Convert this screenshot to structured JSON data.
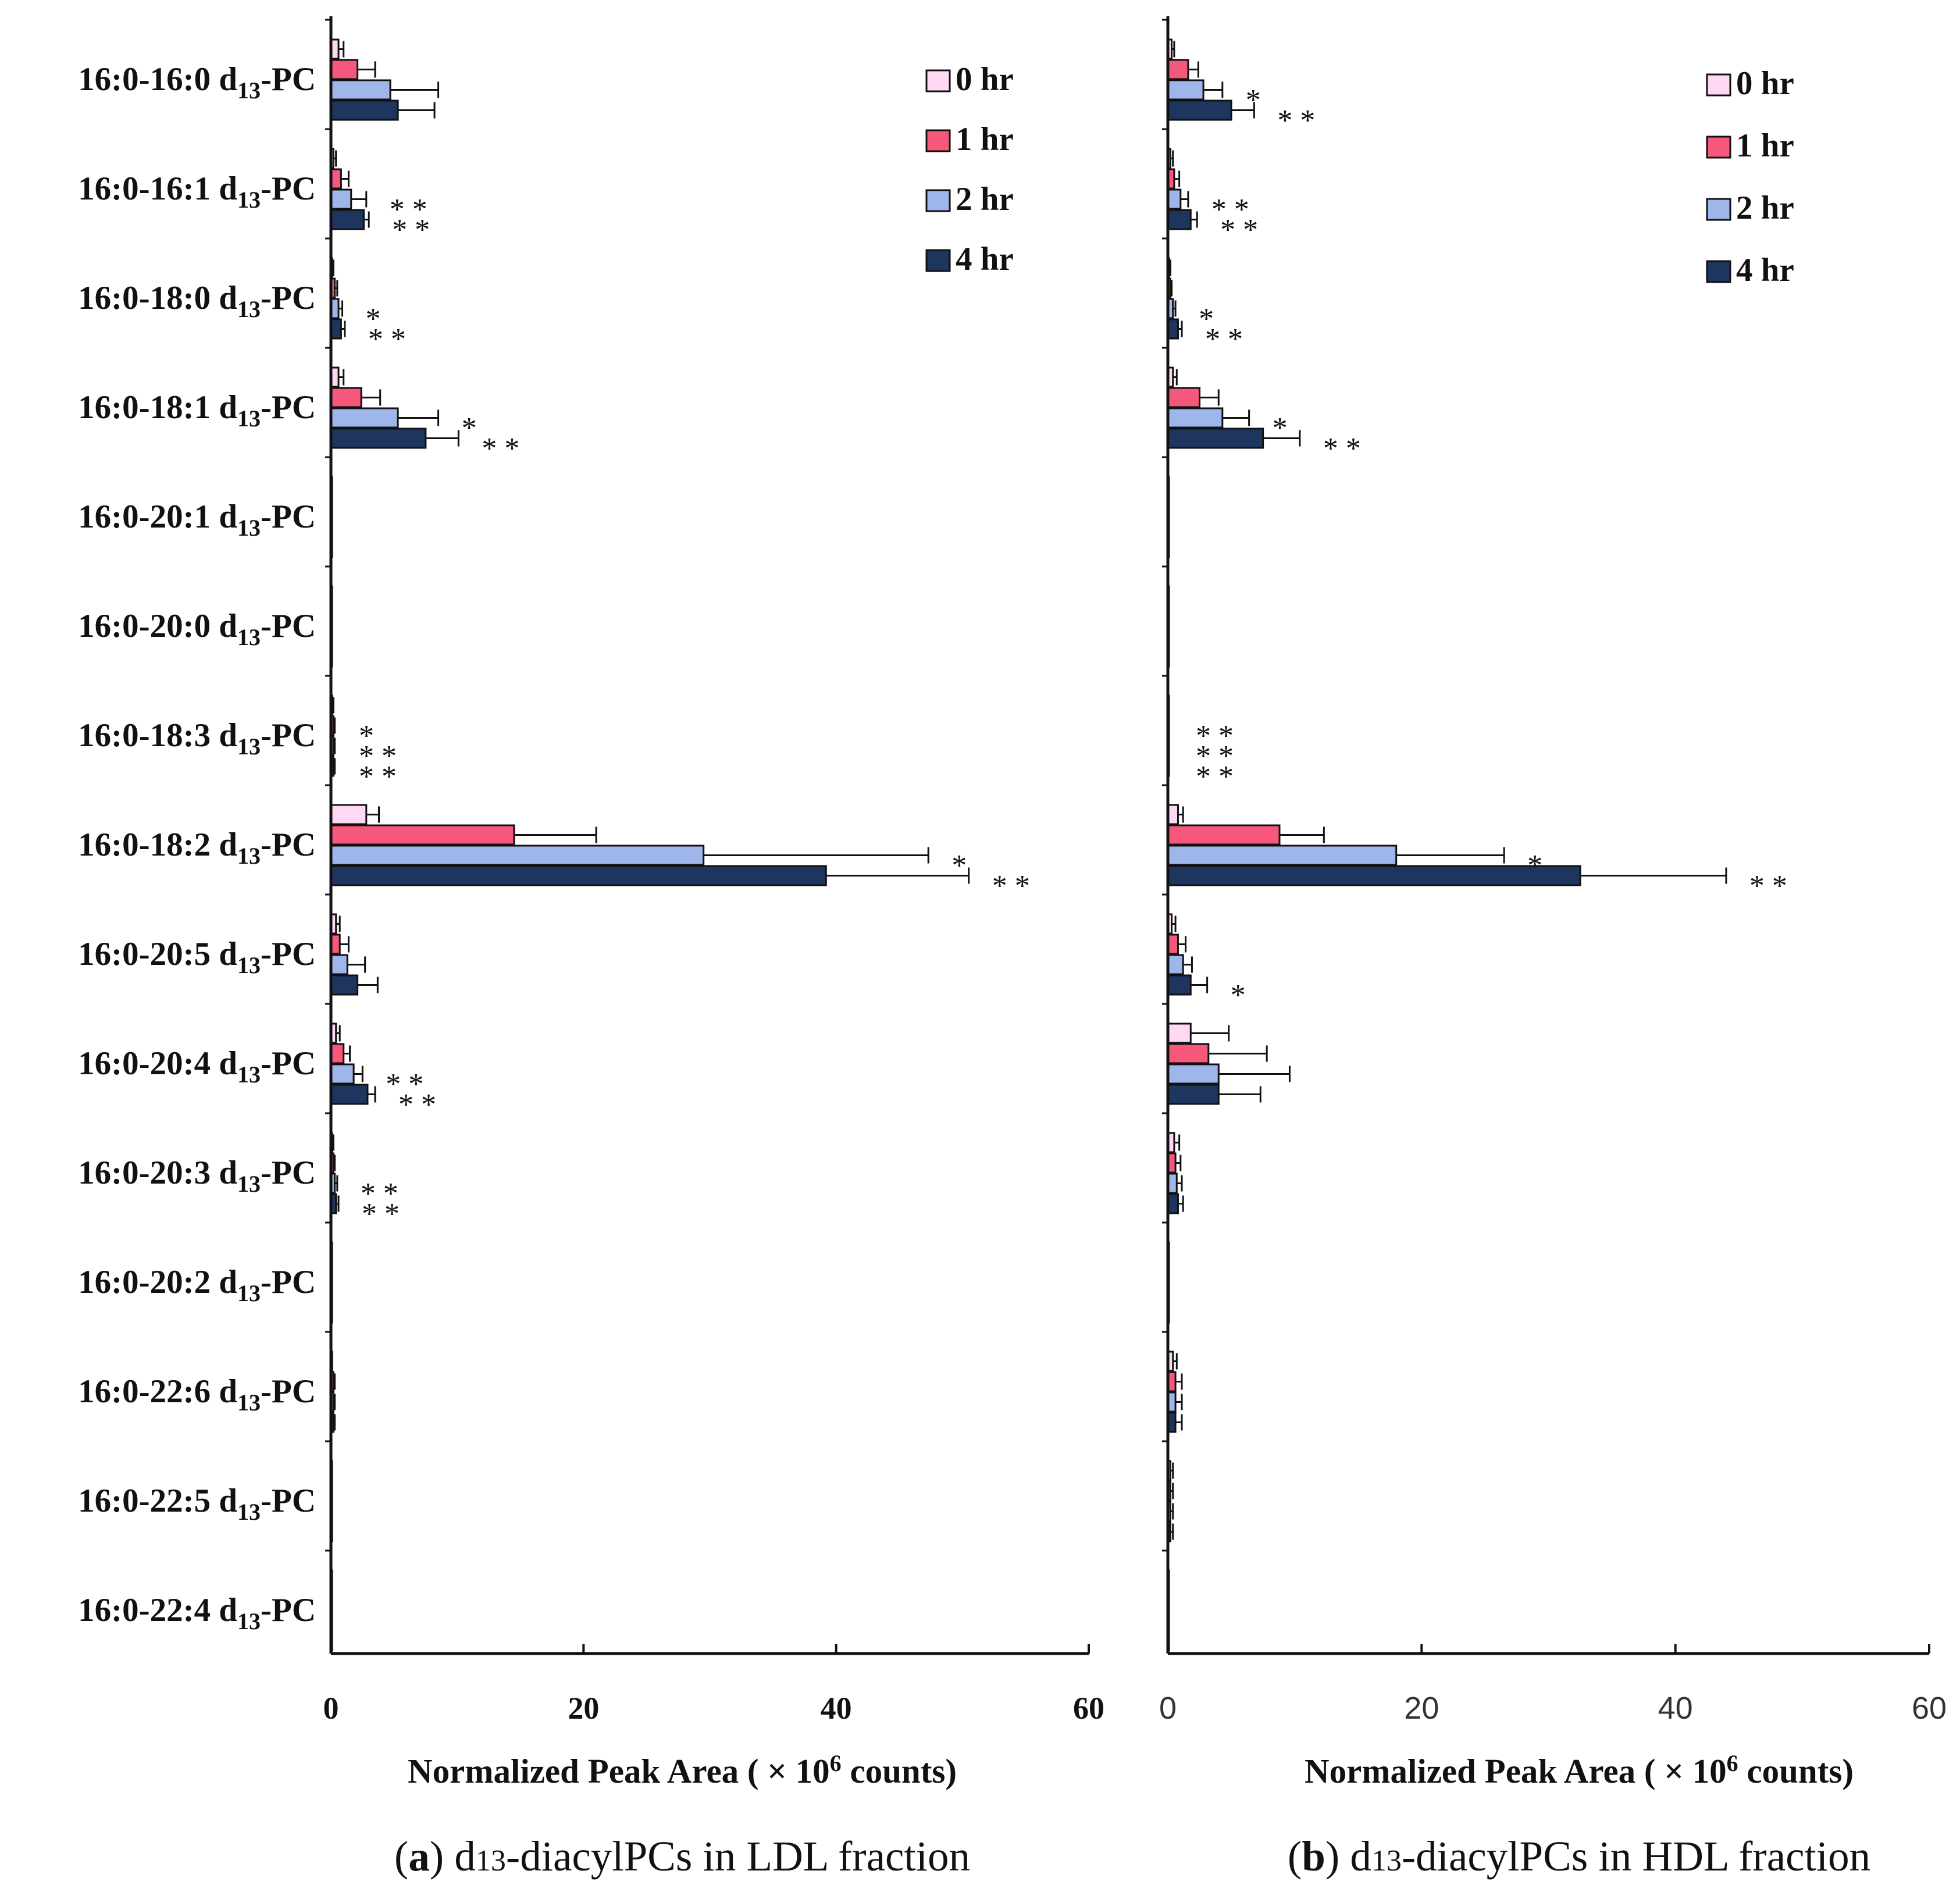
{
  "categories_main": [
    "16:0-16:0",
    "16:0-16:1",
    "16:0-18:0",
    "16:0-18:1",
    "16:0-20:1",
    "16:0-20:0",
    "16:0-18:3",
    "16:0-18:2",
    "16:0-20:5",
    "16:0-20:4",
    "16:0-20:3",
    "16:0-20:2",
    "16:0-22:6",
    "16:0-22:5",
    "16:0-22:4"
  ],
  "label_d": "d",
  "label_sub": "13",
  "label_suffix": "-PC",
  "series_colors": [
    "#ffd9f4",
    "#f5587a",
    "#9fb6ea",
    "#1d355f"
  ],
  "legend_labels": [
    "0 hr",
    "1 hr",
    "2 hr",
    "4 hr"
  ],
  "x_ticks": [
    "0",
    "20",
    "40",
    "60"
  ],
  "xlabel_pre": "Normalized Peak Area ( × 10",
  "xlabel_sup": "6",
  "xlabel_post": " counts)",
  "chart_data": [
    {
      "type": "bar",
      "orientation": "horizontal",
      "caption_letter": "a",
      "caption_sub": "13",
      "caption_text": "-diacylPCs in LDL fraction",
      "xlim": [
        0,
        60
      ],
      "series": [
        {
          "name": "0 hr",
          "values": [
            0.6,
            0.2,
            0.1,
            0.6,
            0.05,
            0.05,
            0.1,
            2.8,
            0.4,
            0.4,
            0.1,
            0.05,
            0.1,
            0.05,
            0.05
          ],
          "errors": [
            0.4,
            0.2,
            0.1,
            0.4,
            0.05,
            0.05,
            0.1,
            1.0,
            0.3,
            0.3,
            0.1,
            0.05,
            0.05,
            0.05,
            0.05
          ]
        },
        {
          "name": "1 hr",
          "values": [
            2.1,
            0.8,
            0.3,
            2.4,
            0.05,
            0.05,
            0.2,
            14.5,
            0.7,
            1.0,
            0.2,
            0.05,
            0.2,
            0.05,
            0.05
          ],
          "errors": [
            1.4,
            0.6,
            0.2,
            1.5,
            0.05,
            0.05,
            0.1,
            6.5,
            0.7,
            0.5,
            0.1,
            0.05,
            0.1,
            0.05,
            0.05
          ]
        },
        {
          "name": "2 hr",
          "values": [
            4.7,
            1.6,
            0.6,
            5.3,
            0.05,
            0.05,
            0.2,
            29.5,
            1.3,
            1.8,
            0.3,
            0.05,
            0.2,
            0.05,
            0.05
          ],
          "errors": [
            3.8,
            1.2,
            0.3,
            3.2,
            0.05,
            0.05,
            0.1,
            17.8,
            1.4,
            0.7,
            0.2,
            0.05,
            0.1,
            0.05,
            0.05
          ]
        },
        {
          "name": "4 hr",
          "values": [
            5.3,
            2.6,
            0.8,
            7.5,
            0.05,
            0.05,
            0.2,
            39.2,
            2.1,
            2.9,
            0.4,
            0.05,
            0.2,
            0.05,
            0.05
          ],
          "errors": [
            2.9,
            0.4,
            0.3,
            2.6,
            0.05,
            0.05,
            0.1,
            11.3,
            1.6,
            0.6,
            0.2,
            0.05,
            0.1,
            0.05,
            0.05
          ]
        }
      ],
      "annotations": [
        {
          "category": "16:0-16:1",
          "series": "2 hr",
          "text": "**"
        },
        {
          "category": "16:0-16:1",
          "series": "4 hr",
          "text": "**"
        },
        {
          "category": "16:0-18:0",
          "series": "2 hr",
          "text": "*"
        },
        {
          "category": "16:0-18:0",
          "series": "4 hr",
          "text": "**"
        },
        {
          "category": "16:0-18:1",
          "series": "2 hr",
          "text": "*"
        },
        {
          "category": "16:0-18:1",
          "series": "4 hr",
          "text": "**"
        },
        {
          "category": "16:0-18:3",
          "series": "1 hr",
          "text": "*"
        },
        {
          "category": "16:0-18:3",
          "series": "2 hr",
          "text": "**"
        },
        {
          "category": "16:0-18:3",
          "series": "4 hr",
          "text": "**"
        },
        {
          "category": "16:0-18:2",
          "series": "2 hr",
          "text": "*"
        },
        {
          "category": "16:0-18:2",
          "series": "4 hr",
          "text": "**"
        },
        {
          "category": "16:0-20:4",
          "series": "2 hr",
          "text": "**"
        },
        {
          "category": "16:0-20:4",
          "series": "4 hr",
          "text": "**"
        },
        {
          "category": "16:0-20:3",
          "series": "2 hr",
          "text": "**"
        },
        {
          "category": "16:0-20:3",
          "series": "4 hr",
          "text": "**"
        }
      ]
    },
    {
      "type": "bar",
      "orientation": "horizontal",
      "caption_letter": "b",
      "caption_sub": "13",
      "caption_text": "-diacylPCs in HDL fraction",
      "xlim": [
        0,
        60
      ],
      "series": [
        {
          "name": "0 hr",
          "values": [
            0.3,
            0.2,
            0.1,
            0.4,
            0.05,
            0.05,
            0.05,
            0.8,
            0.3,
            1.8,
            0.5,
            0.05,
            0.4,
            0.2,
            0.05
          ],
          "errors": [
            0.2,
            0.2,
            0.1,
            0.3,
            0.05,
            0.05,
            0.05,
            0.4,
            0.3,
            3.0,
            0.4,
            0.05,
            0.3,
            0.2,
            0.05
          ]
        },
        {
          "name": "1 hr",
          "values": [
            1.6,
            0.5,
            0.2,
            2.5,
            0.05,
            0.05,
            0.05,
            8.8,
            0.8,
            3.2,
            0.6,
            0.05,
            0.6,
            0.2,
            0.05
          ],
          "errors": [
            0.8,
            0.4,
            0.1,
            1.5,
            0.05,
            0.05,
            0.05,
            3.5,
            0.6,
            4.6,
            0.4,
            0.05,
            0.5,
            0.2,
            0.05
          ]
        },
        {
          "name": "2 hr",
          "values": [
            2.8,
            1.0,
            0.4,
            4.3,
            0.05,
            0.05,
            0.05,
            18.0,
            1.2,
            4.0,
            0.7,
            0.05,
            0.6,
            0.2,
            0.05
          ],
          "errors": [
            1.5,
            0.6,
            0.2,
            2.1,
            0.05,
            0.05,
            0.05,
            8.5,
            0.7,
            5.6,
            0.4,
            0.05,
            0.5,
            0.2,
            0.05
          ]
        },
        {
          "name": "4 hr",
          "values": [
            5.0,
            1.8,
            0.8,
            7.5,
            0.05,
            0.05,
            0.05,
            32.5,
            1.8,
            4.0,
            0.8,
            0.05,
            0.6,
            0.2,
            0.05
          ],
          "errors": [
            1.8,
            0.5,
            0.3,
            2.9,
            0.05,
            0.05,
            0.05,
            11.5,
            1.3,
            3.3,
            0.4,
            0.05,
            0.5,
            0.2,
            0.05
          ]
        }
      ],
      "annotations": [
        {
          "category": "16:0-16:0",
          "series": "2 hr",
          "text": "*"
        },
        {
          "category": "16:0-16:0",
          "series": "4 hr",
          "text": "**"
        },
        {
          "category": "16:0-16:1",
          "series": "2 hr",
          "text": "**"
        },
        {
          "category": "16:0-16:1",
          "series": "4 hr",
          "text": "**"
        },
        {
          "category": "16:0-18:0",
          "series": "2 hr",
          "text": "*"
        },
        {
          "category": "16:0-18:0",
          "series": "4 hr",
          "text": "**"
        },
        {
          "category": "16:0-18:1",
          "series": "2 hr",
          "text": "*"
        },
        {
          "category": "16:0-18:1",
          "series": "4 hr",
          "text": "**"
        },
        {
          "category": "16:0-18:3",
          "series": "1 hr",
          "text": "**"
        },
        {
          "category": "16:0-18:3",
          "series": "2 hr",
          "text": "**"
        },
        {
          "category": "16:0-18:3",
          "series": "4 hr",
          "text": "**"
        },
        {
          "category": "16:0-18:2",
          "series": "2 hr",
          "text": "*"
        },
        {
          "category": "16:0-18:2",
          "series": "4 hr",
          "text": "**"
        },
        {
          "category": "16:0-20:5",
          "series": "4 hr",
          "text": "*"
        }
      ]
    }
  ]
}
